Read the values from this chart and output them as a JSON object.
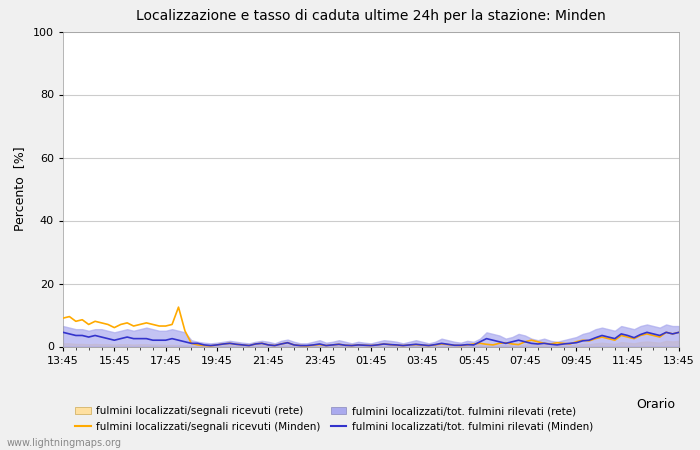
{
  "title": "Localizzazione e tasso di caduta ultime 24h per la stazione: Minden",
  "ylabel": "Percento  [%]",
  "xlabel": "Orario",
  "xlim": [
    0,
    96
  ],
  "ylim": [
    0,
    100
  ],
  "yticks": [
    0,
    20,
    40,
    60,
    80,
    100
  ],
  "xtick_labels": [
    "13:45",
    "15:45",
    "17:45",
    "19:45",
    "21:45",
    "23:45",
    "01:45",
    "03:45",
    "05:45",
    "07:45",
    "09:45",
    "11:45",
    "13:45"
  ],
  "xtick_positions": [
    0,
    8,
    16,
    24,
    32,
    40,
    48,
    56,
    64,
    72,
    80,
    88,
    96
  ],
  "watermark": "www.lightningmaps.org",
  "bg_color": "#f0f0f0",
  "plot_bg_color": "#ffffff",
  "grid_color": "#cccccc",
  "color_orange": "#ffaa00",
  "color_orange_fill": "#ffe0a0",
  "color_blue": "#3333cc",
  "color_blue_fill": "#aaaaee",
  "legend_items": [
    "fulmini localizzati/segnali ricevuti (rete)",
    "fulmini localizzati/segnali ricevuti (Minden)",
    "fulmini localizzati/tot. fulmini rilevati (rete)",
    "fulmini localizzati/tot. fulmini rilevati (Minden)"
  ],
  "orange_line": [
    9,
    9.5,
    8,
    8.5,
    7,
    8,
    7.5,
    7,
    6,
    7,
    7.5,
    6.5,
    7,
    7.5,
    7,
    6.5,
    6.5,
    7,
    12.5,
    5,
    1,
    0.5,
    0.3,
    0.2,
    0.5,
    0.8,
    1.0,
    0.7,
    0.5,
    0.3,
    0.8,
    1.0,
    0.5,
    0.3,
    0.8,
    1.2,
    0.5,
    0.3,
    0.2,
    0.4,
    0.6,
    0.3,
    0.5,
    0.7,
    0.4,
    0.3,
    0.5,
    0.4,
    0.3,
    0.5,
    0.8,
    0.6,
    0.4,
    0.3,
    0.5,
    0.6,
    0.4,
    0.3,
    0.5,
    0.8,
    0.6,
    0.4,
    0.3,
    0.5,
    0.8,
    1.0,
    0.7,
    0.5,
    1.0,
    1.2,
    0.8,
    0.6,
    1.5,
    2.0,
    1.5,
    1.0,
    0.8,
    1.2,
    1.0,
    0.8,
    1.5,
    2.0,
    1.8,
    2.5,
    3.0,
    2.5,
    2.0,
    3.5,
    3.0,
    2.5,
    3.5,
    4.0,
    3.5,
    3.0,
    4.5,
    4.0,
    4.5
  ],
  "orange_fill_top": [
    1.0,
    1.0,
    0.8,
    0.8,
    0.7,
    0.8,
    0.7,
    0.7,
    0.6,
    0.7,
    0.7,
    0.6,
    0.7,
    0.7,
    0.6,
    0.6,
    0.5,
    0.5,
    0.5,
    0.4,
    0.3,
    0.3,
    0.12,
    0.08,
    0.2,
    0.32,
    0.4,
    0.28,
    0.2,
    0.12,
    0.32,
    0.4,
    0.2,
    0.12,
    0.32,
    0.48,
    0.2,
    0.12,
    0.08,
    0.16,
    0.24,
    0.12,
    0.2,
    0.28,
    0.16,
    0.12,
    0.2,
    0.16,
    0.12,
    0.2,
    0.32,
    0.24,
    0.16,
    0.12,
    0.2,
    0.24,
    0.16,
    0.12,
    0.2,
    0.32,
    0.24,
    0.16,
    0.12,
    0.2,
    0.32,
    0.4,
    0.28,
    0.2,
    0.4,
    0.48,
    0.32,
    0.24,
    0.6,
    0.8,
    0.6,
    0.4,
    0.32,
    0.48,
    0.4,
    0.32,
    0.6,
    0.8,
    0.72,
    1.0,
    1.2,
    1.0,
    0.8,
    1.4,
    1.2,
    1.0,
    1.4,
    1.6,
    1.4,
    1.2,
    1.8,
    1.6,
    1.8
  ],
  "blue_line": [
    4.5,
    4.0,
    3.5,
    3.5,
    3.0,
    3.5,
    3.0,
    2.5,
    2.0,
    2.5,
    3.0,
    2.5,
    2.5,
    2.5,
    2.0,
    2.0,
    2.0,
    2.5,
    2.0,
    1.5,
    1.0,
    1.0,
    0.5,
    0.3,
    0.5,
    0.8,
    1.0,
    0.7,
    0.5,
    0.3,
    0.8,
    1.0,
    0.5,
    0.3,
    0.8,
    1.2,
    0.5,
    0.3,
    0.3,
    0.5,
    0.8,
    0.3,
    0.5,
    0.7,
    0.4,
    0.3,
    0.5,
    0.4,
    0.3,
    0.5,
    0.8,
    0.6,
    0.5,
    0.3,
    0.5,
    0.7,
    0.5,
    0.3,
    0.6,
    1.0,
    0.7,
    0.4,
    0.4,
    0.6,
    0.5,
    1.5,
    2.5,
    2.0,
    1.5,
    1.0,
    1.5,
    2.0,
    1.5,
    1.0,
    0.8,
    1.0,
    0.7,
    0.5,
    0.8,
    1.0,
    1.2,
    1.8,
    2.0,
    2.8,
    3.5,
    3.0,
    2.5,
    4.0,
    3.5,
    2.8,
    3.8,
    4.5,
    4.0,
    3.5,
    4.5,
    4.0,
    4.5
  ],
  "blue_fill_top": [
    6.5,
    6.0,
    5.5,
    5.5,
    5.0,
    5.5,
    5.5,
    5.0,
    4.5,
    5.0,
    5.5,
    5.0,
    5.5,
    6.0,
    5.5,
    5.0,
    5.0,
    5.5,
    5.0,
    4.5,
    2.0,
    1.5,
    1.2,
    1.0,
    1.2,
    1.5,
    1.8,
    1.5,
    1.2,
    1.0,
    1.5,
    1.8,
    1.5,
    1.0,
    1.8,
    2.2,
    1.5,
    1.0,
    1.0,
    1.5,
    2.0,
    1.2,
    1.5,
    2.0,
    1.5,
    1.0,
    1.5,
    1.2,
    1.0,
    1.5,
    2.0,
    1.8,
    1.5,
    1.0,
    1.5,
    2.0,
    1.5,
    1.0,
    1.5,
    2.5,
    2.0,
    1.5,
    1.2,
    1.8,
    1.5,
    2.5,
    4.5,
    4.0,
    3.5,
    2.5,
    3.0,
    4.0,
    3.5,
    2.5,
    2.0,
    2.5,
    1.8,
    1.5,
    2.0,
    2.5,
    3.0,
    4.0,
    4.5,
    5.5,
    6.0,
    5.5,
    5.0,
    6.5,
    6.0,
    5.5,
    6.5,
    7.0,
    6.5,
    6.0,
    7.0,
    6.5,
    6.5
  ]
}
